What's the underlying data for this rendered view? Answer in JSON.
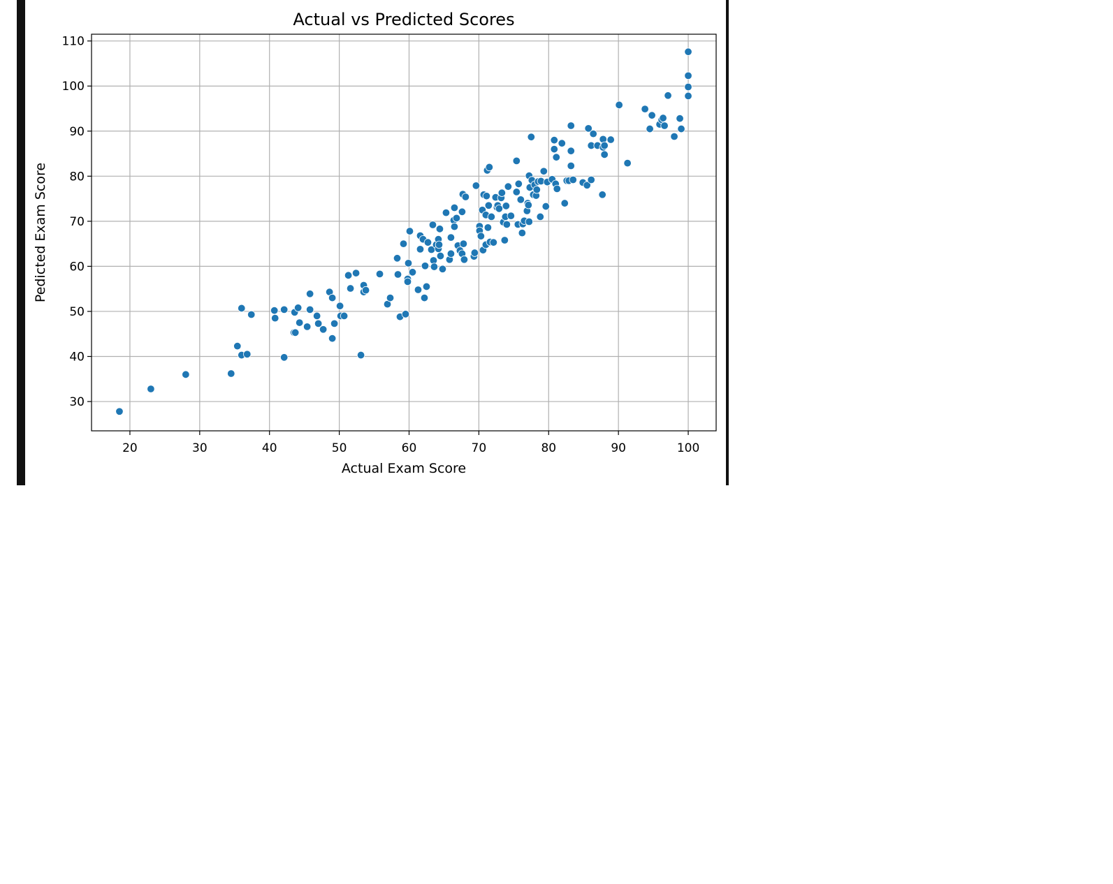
{
  "chart_data": {
    "type": "scatter",
    "title": "Actual vs Predicted Scores",
    "xlabel": "Actual Exam Score",
    "ylabel": "Pedicted Exam Score",
    "xlim": [
      14.5,
      104
    ],
    "ylim": [
      23.5,
      111.5
    ],
    "xticks": [
      20,
      30,
      40,
      50,
      60,
      70,
      80,
      90,
      100
    ],
    "yticks": [
      30,
      40,
      50,
      60,
      70,
      80,
      90,
      100,
      110
    ],
    "grid": true,
    "marker_color": "#1f77b4",
    "points": [
      [
        18.5,
        27.8
      ],
      [
        23,
        32.8
      ],
      [
        28,
        36
      ],
      [
        34.5,
        36.2
      ],
      [
        35.4,
        42.3
      ],
      [
        36,
        40.3
      ],
      [
        36.8,
        40.5
      ],
      [
        36,
        50.7
      ],
      [
        37.4,
        49.3
      ],
      [
        40.7,
        50.2
      ],
      [
        40.8,
        48.5
      ],
      [
        42.1,
        50.4
      ],
      [
        42.1,
        39.8
      ],
      [
        43.5,
        45.3
      ],
      [
        43.7,
        45.3
      ],
      [
        43.6,
        49.8
      ],
      [
        44.1,
        50.8
      ],
      [
        44.3,
        47.5
      ],
      [
        45.4,
        46.6
      ],
      [
        45.8,
        50.4
      ],
      [
        45.8,
        53.9
      ],
      [
        46.8,
        49
      ],
      [
        47,
        47.3
      ],
      [
        47.7,
        46
      ],
      [
        48.6,
        54.3
      ],
      [
        49,
        53
      ],
      [
        49,
        44
      ],
      [
        49.3,
        47.3
      ],
      [
        50.1,
        51.2
      ],
      [
        50.2,
        49
      ],
      [
        50.7,
        49
      ],
      [
        51.3,
        58
      ],
      [
        51.6,
        55.1
      ],
      [
        52.4,
        58.5
      ],
      [
        53.1,
        40.3
      ],
      [
        53.5,
        55.8
      ],
      [
        53.5,
        54.3
      ],
      [
        53.8,
        54.7
      ],
      [
        55.8,
        58.3
      ],
      [
        56.9,
        51.6
      ],
      [
        57.3,
        53
      ],
      [
        58.3,
        61.8
      ],
      [
        58.4,
        58.2
      ],
      [
        58.7,
        48.8
      ],
      [
        59.2,
        65
      ],
      [
        59.5,
        49.4
      ],
      [
        59.8,
        57.2
      ],
      [
        59.8,
        56.6
      ],
      [
        59.9,
        60.7
      ],
      [
        60.1,
        67.8
      ],
      [
        60.5,
        58.7
      ],
      [
        61.3,
        54.8
      ],
      [
        61.6,
        63.8
      ],
      [
        61.6,
        66.8
      ],
      [
        62,
        66
      ],
      [
        62.2,
        53
      ],
      [
        62.3,
        60.1
      ],
      [
        62.5,
        55.5
      ],
      [
        62.7,
        65.3
      ],
      [
        63.2,
        63.7
      ],
      [
        63.4,
        69.2
      ],
      [
        63.5,
        61.3
      ],
      [
        63.6,
        59.9
      ],
      [
        63.9,
        64.8
      ],
      [
        64.2,
        63.9
      ],
      [
        64.2,
        66
      ],
      [
        64.3,
        64.8
      ],
      [
        64.4,
        68.3
      ],
      [
        64.5,
        62.3
      ],
      [
        64.8,
        59.4
      ],
      [
        65.3,
        71.9
      ],
      [
        65.8,
        61.5
      ],
      [
        66,
        62.8
      ],
      [
        66,
        66.4
      ],
      [
        66.4,
        70.2
      ],
      [
        66.5,
        73
      ],
      [
        66.5,
        68.8
      ],
      [
        66.8,
        70.7
      ],
      [
        67,
        64.6
      ],
      [
        67.3,
        63.5
      ],
      [
        67.6,
        72.1
      ],
      [
        67.6,
        62.8
      ],
      [
        67.7,
        76
      ],
      [
        67.8,
        65
      ],
      [
        67.9,
        61.5
      ],
      [
        68.1,
        75.4
      ],
      [
        69.3,
        62.2
      ],
      [
        69.4,
        63
      ],
      [
        69.6,
        77.9
      ],
      [
        70.1,
        68.9
      ],
      [
        70.1,
        67.9
      ],
      [
        70.3,
        66.7
      ],
      [
        70.5,
        72.5
      ],
      [
        70.6,
        63.6
      ],
      [
        70.7,
        75.9
      ],
      [
        71,
        71.4
      ],
      [
        71,
        64.8
      ],
      [
        71.1,
        75.6
      ],
      [
        71.2,
        81.3
      ],
      [
        71.3,
        68.6
      ],
      [
        71.4,
        73.5
      ],
      [
        71.5,
        82
      ],
      [
        71.6,
        65.4
      ],
      [
        71.8,
        71
      ],
      [
        72.1,
        65.3
      ],
      [
        72.4,
        75.3
      ],
      [
        72.6,
        73.1
      ],
      [
        72.7,
        73.5
      ],
      [
        72.9,
        72.8
      ],
      [
        73.2,
        75.2
      ],
      [
        73.3,
        76.3
      ],
      [
        73.5,
        69.8
      ],
      [
        73.7,
        65.8
      ],
      [
        73.8,
        71
      ],
      [
        73.9,
        73.4
      ],
      [
        74,
        69.3
      ],
      [
        74.2,
        77.7
      ],
      [
        74.6,
        71.2
      ],
      [
        75.4,
        83.4
      ],
      [
        75.4,
        76.5
      ],
      [
        75.6,
        69.3
      ],
      [
        75.7,
        78.3
      ],
      [
        76,
        74.8
      ],
      [
        76.2,
        67.4
      ],
      [
        76.3,
        69.4
      ],
      [
        76.5,
        70.1
      ],
      [
        76.9,
        72.3
      ],
      [
        77,
        74
      ],
      [
        77.1,
        73.6
      ],
      [
        77.2,
        80.1
      ],
      [
        77.2,
        69.9
      ],
      [
        77.3,
        77.5
      ],
      [
        77.5,
        88.7
      ],
      [
        77.6,
        79.1
      ],
      [
        77.8,
        75.9
      ],
      [
        78,
        78.1
      ],
      [
        78.2,
        75.7
      ],
      [
        78.3,
        77
      ],
      [
        78.5,
        78.8
      ],
      [
        78.8,
        71
      ],
      [
        78.9,
        78.9
      ],
      [
        79.3,
        81.1
      ],
      [
        79.6,
        73.3
      ],
      [
        79.8,
        78.7
      ],
      [
        80.5,
        79.3
      ],
      [
        80.8,
        88
      ],
      [
        80.8,
        86
      ],
      [
        81,
        78.3
      ],
      [
        81.1,
        84.2
      ],
      [
        81.2,
        77.2
      ],
      [
        81.9,
        87.3
      ],
      [
        82.3,
        74
      ],
      [
        82.6,
        79
      ],
      [
        82.9,
        79
      ],
      [
        83.2,
        91.2
      ],
      [
        83.2,
        85.6
      ],
      [
        83.2,
        82.3
      ],
      [
        83.5,
        79.2
      ],
      [
        84.9,
        78.6
      ],
      [
        85.5,
        78
      ],
      [
        85.7,
        90.6
      ],
      [
        86.1,
        86.8
      ],
      [
        86.1,
        79.2
      ],
      [
        86.4,
        89.4
      ],
      [
        87,
        86.8
      ],
      [
        87.7,
        75.9
      ],
      [
        87.8,
        88.2
      ],
      [
        87.8,
        86.4
      ],
      [
        88,
        84.8
      ],
      [
        88,
        86.8
      ],
      [
        88.9,
        88.1
      ],
      [
        90.1,
        95.8
      ],
      [
        91.3,
        82.9
      ],
      [
        93.8,
        94.9
      ],
      [
        94.5,
        90.5
      ],
      [
        94.8,
        93.5
      ],
      [
        95.9,
        91.5
      ],
      [
        96.2,
        92.5
      ],
      [
        96.4,
        92.9
      ],
      [
        96.6,
        91.2
      ],
      [
        97.1,
        97.9
      ],
      [
        98,
        88.8
      ],
      [
        98.8,
        92.8
      ],
      [
        99,
        90.5
      ],
      [
        100,
        97.8
      ],
      [
        100,
        99.8
      ],
      [
        100,
        102.3
      ],
      [
        100,
        107.6
      ]
    ]
  }
}
